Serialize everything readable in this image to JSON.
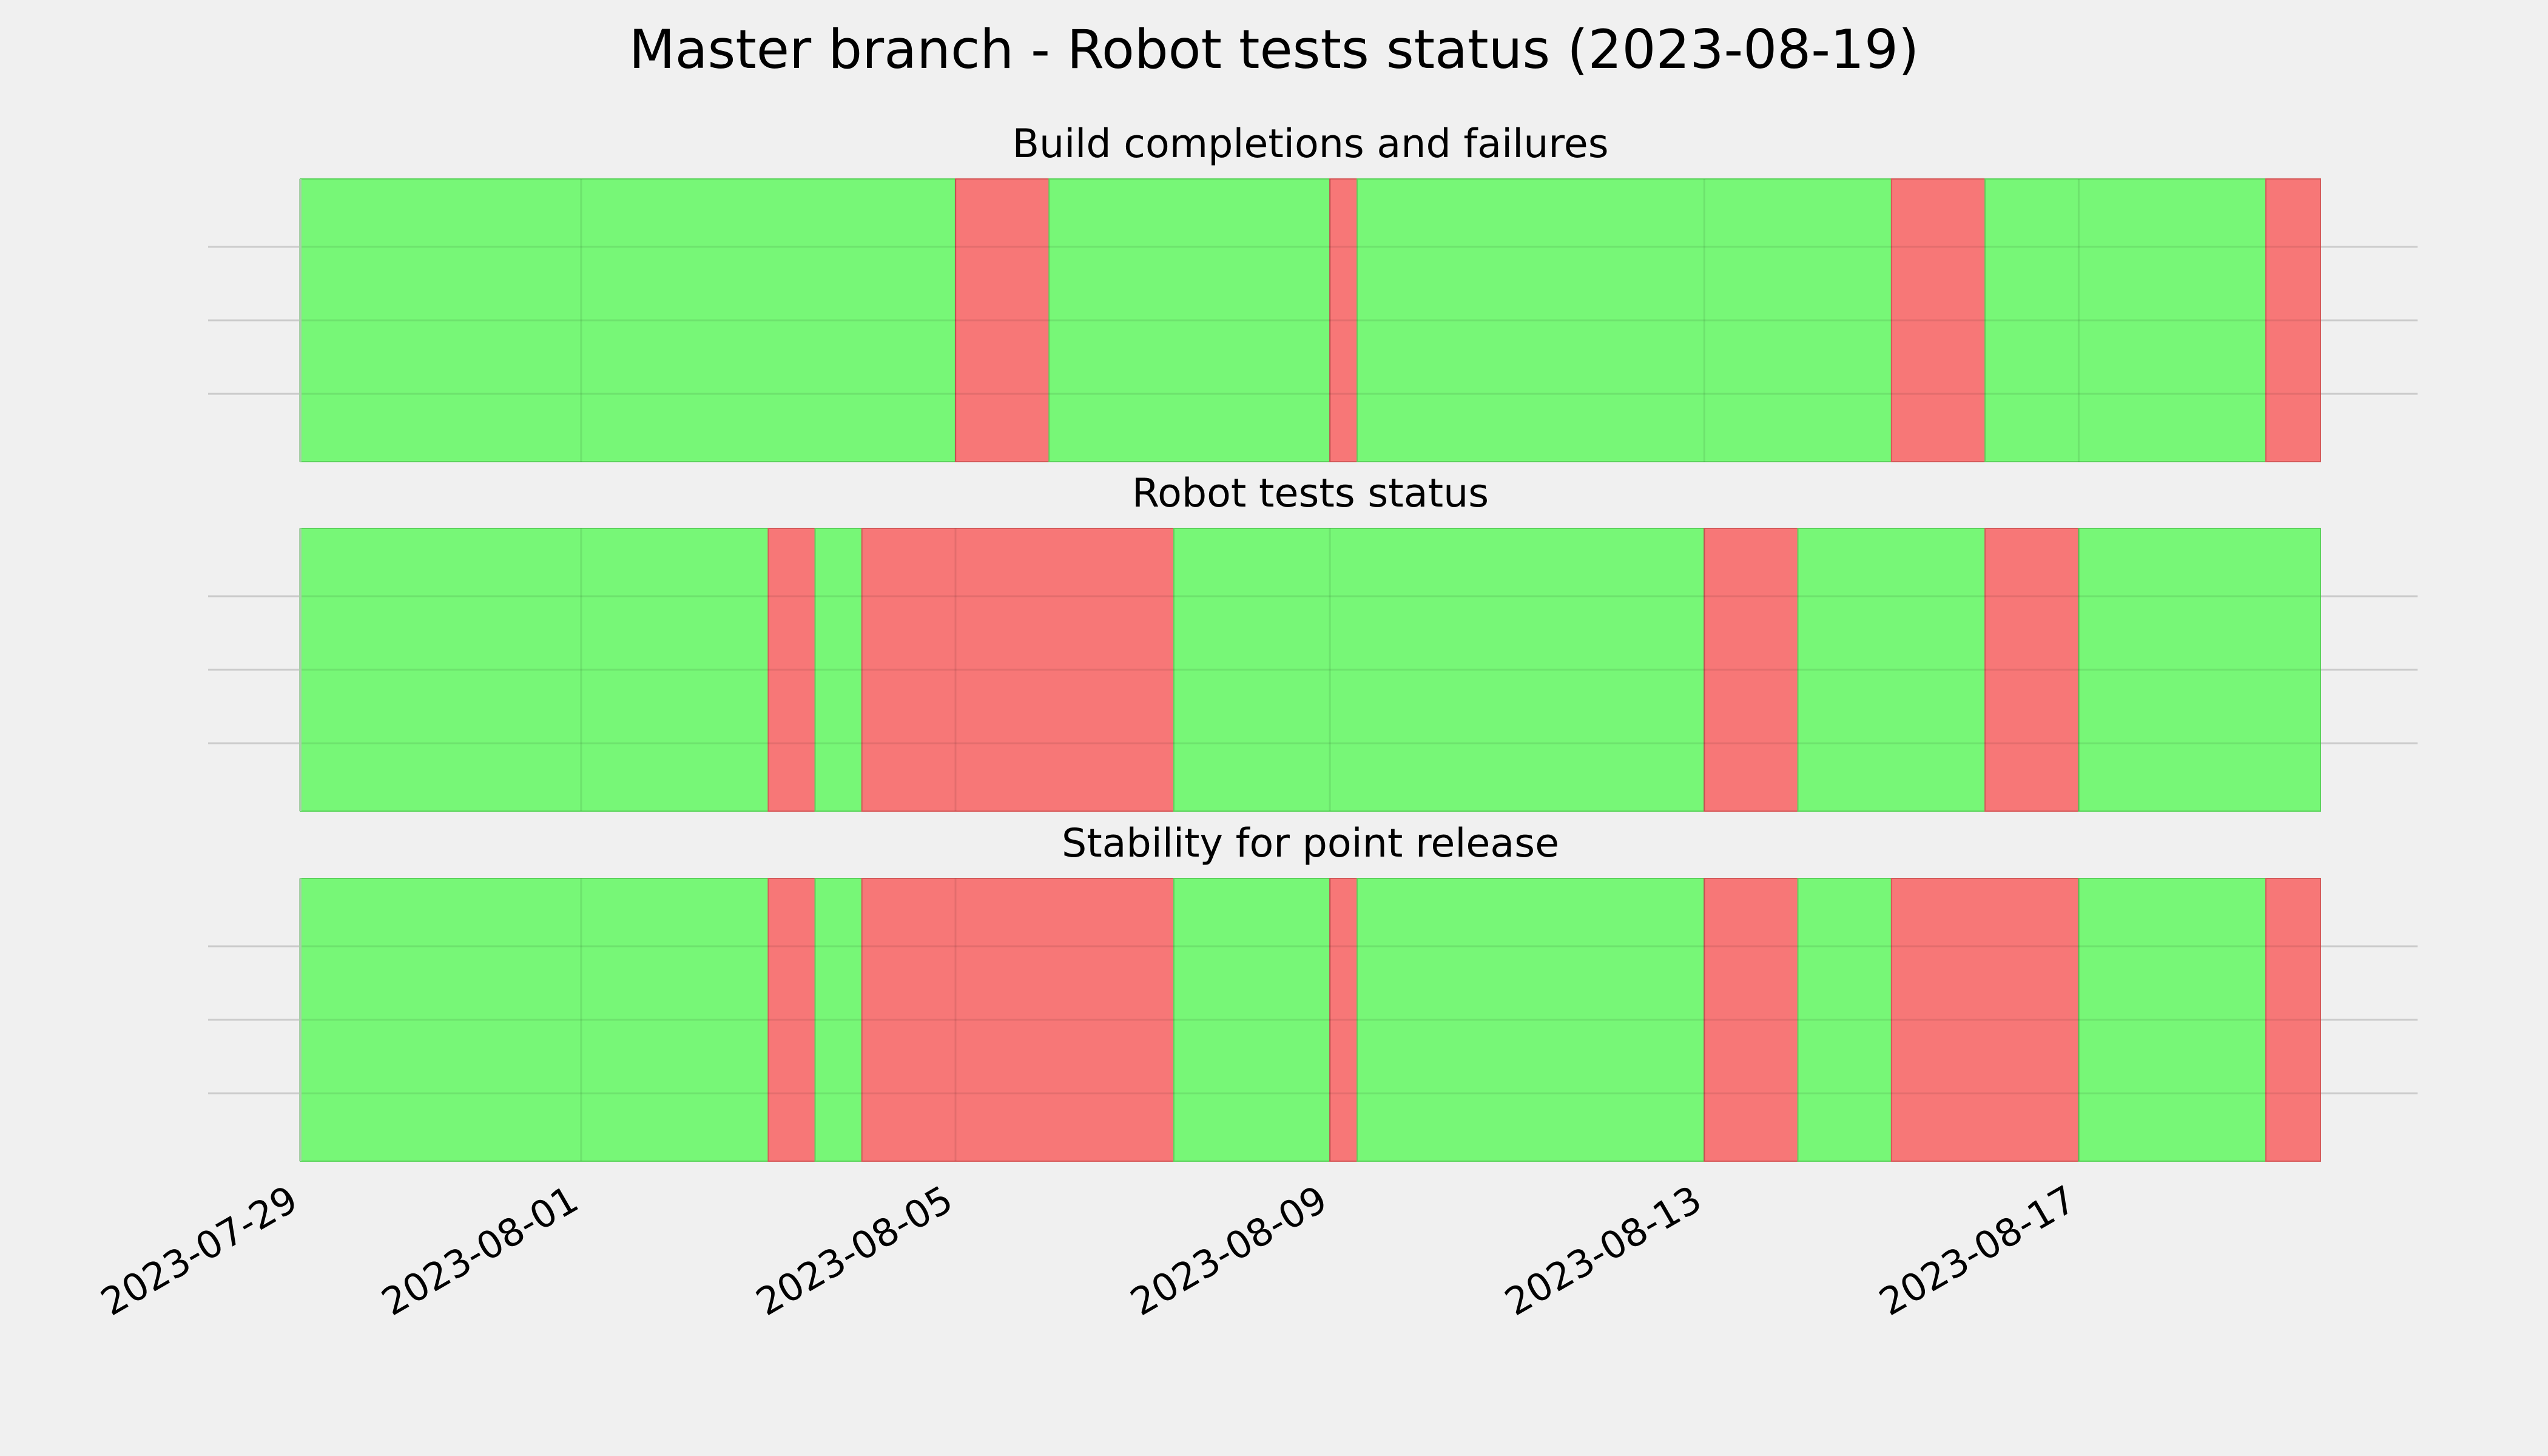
{
  "chart_data": {
    "type": "timeline",
    "title": "Master branch - Robot tests status (2023-08-19)",
    "x_range": [
      "2023-07-29",
      "2023-08-19T14:00"
    ],
    "xticks": [
      "2023-07-29",
      "2023-08-01",
      "2023-08-05",
      "2023-08-09",
      "2023-08-13",
      "2023-08-17"
    ],
    "grid": true,
    "colors": {
      "pass": "#77f777",
      "fail": "#f77777",
      "grid": "#cbcbcb",
      "background": "#f0f0f0"
    },
    "panels": [
      {
        "title": "Build completions and failures",
        "segments": [
          {
            "start": "2023-07-29T00:00",
            "end": "2023-08-05T00:00",
            "status": "pass"
          },
          {
            "start": "2023-08-05T00:00",
            "end": "2023-08-06T00:00",
            "status": "fail"
          },
          {
            "start": "2023-08-06T00:00",
            "end": "2023-08-09T00:00",
            "status": "pass"
          },
          {
            "start": "2023-08-09T00:00",
            "end": "2023-08-09T07:00",
            "status": "fail"
          },
          {
            "start": "2023-08-09T07:00",
            "end": "2023-08-15T00:00",
            "status": "pass"
          },
          {
            "start": "2023-08-15T00:00",
            "end": "2023-08-16T00:00",
            "status": "fail"
          },
          {
            "start": "2023-08-16T00:00",
            "end": "2023-08-19T00:00",
            "status": "pass"
          },
          {
            "start": "2023-08-19T00:00",
            "end": "2023-08-19T14:00",
            "status": "fail"
          }
        ]
      },
      {
        "title": "Robot tests status",
        "segments": [
          {
            "start": "2023-07-29T00:00",
            "end": "2023-08-03T00:00",
            "status": "pass"
          },
          {
            "start": "2023-08-03T00:00",
            "end": "2023-08-03T12:00",
            "status": "fail"
          },
          {
            "start": "2023-08-03T12:00",
            "end": "2023-08-04T00:00",
            "status": "pass"
          },
          {
            "start": "2023-08-04T00:00",
            "end": "2023-08-07T08:00",
            "status": "fail"
          },
          {
            "start": "2023-08-07T08:00",
            "end": "2023-08-13T00:00",
            "status": "pass"
          },
          {
            "start": "2023-08-13T00:00",
            "end": "2023-08-14T00:00",
            "status": "fail"
          },
          {
            "start": "2023-08-14T00:00",
            "end": "2023-08-16T00:00",
            "status": "pass"
          },
          {
            "start": "2023-08-16T00:00",
            "end": "2023-08-17T00:00",
            "status": "fail"
          },
          {
            "start": "2023-08-17T00:00",
            "end": "2023-08-19T14:00",
            "status": "pass"
          }
        ]
      },
      {
        "title": "Stability for point release",
        "segments": [
          {
            "start": "2023-07-29T00:00",
            "end": "2023-08-03T00:00",
            "status": "pass"
          },
          {
            "start": "2023-08-03T00:00",
            "end": "2023-08-03T12:00",
            "status": "fail"
          },
          {
            "start": "2023-08-03T12:00",
            "end": "2023-08-04T00:00",
            "status": "pass"
          },
          {
            "start": "2023-08-04T00:00",
            "end": "2023-08-07T08:00",
            "status": "fail"
          },
          {
            "start": "2023-08-07T08:00",
            "end": "2023-08-09T00:00",
            "status": "pass"
          },
          {
            "start": "2023-08-09T00:00",
            "end": "2023-08-09T07:00",
            "status": "fail"
          },
          {
            "start": "2023-08-09T07:00",
            "end": "2023-08-13T00:00",
            "status": "pass"
          },
          {
            "start": "2023-08-13T00:00",
            "end": "2023-08-14T00:00",
            "status": "fail"
          },
          {
            "start": "2023-08-14T00:00",
            "end": "2023-08-15T00:00",
            "status": "pass"
          },
          {
            "start": "2023-08-15T00:00",
            "end": "2023-08-17T00:00",
            "status": "fail"
          },
          {
            "start": "2023-08-17T00:00",
            "end": "2023-08-19T00:00",
            "status": "pass"
          },
          {
            "start": "2023-08-19T00:00",
            "end": "2023-08-19T14:00",
            "status": "fail"
          }
        ]
      }
    ]
  }
}
